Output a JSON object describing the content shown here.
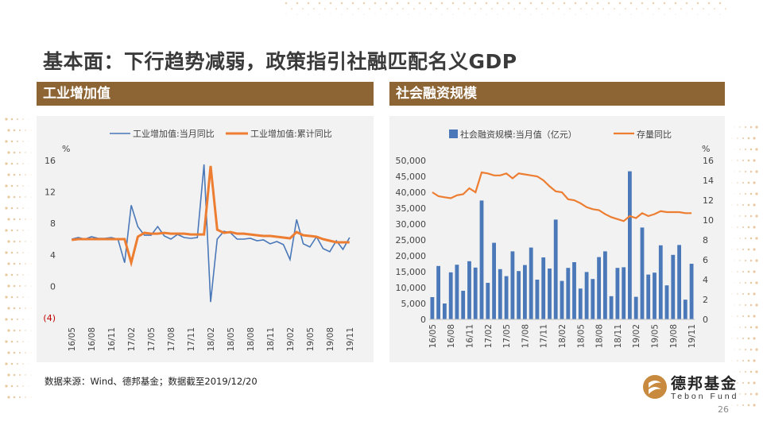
{
  "page": {
    "title": "基本面：下行趋势减弱，政策指引社融匹配名义GDP",
    "left_header": "工业增加值",
    "right_header": "社会融资规模",
    "source": "数据来源：Wind、德邦基金；数据截至2019/12/20",
    "page_number": "26",
    "logo": {
      "cn": "德邦基金",
      "en": "Tebon Fund",
      "icon": "tebon-logo-icon"
    },
    "colors": {
      "header_bg": "#8d6433",
      "blue": "#4a78b8",
      "orange": "#ed7d31",
      "panel_bg": "#f2f2f2"
    }
  },
  "chart_data": [
    {
      "type": "line",
      "y_unit": "%",
      "ylim": [
        -4,
        16
      ],
      "yticks": [
        16,
        12,
        8,
        4,
        0,
        -4
      ],
      "ytick_labels": [
        "16",
        "12",
        "8",
        "4",
        "0",
        "(4)"
      ],
      "x_tick_labels": [
        "16/05",
        "16/08",
        "16/11",
        "17/02",
        "17/05",
        "17/08",
        "17/11",
        "18/02",
        "18/05",
        "18/08",
        "18/11",
        "19/02",
        "19/05",
        "19/08",
        "19/11"
      ],
      "x": [
        "16/05",
        "16/06",
        "16/07",
        "16/08",
        "16/09",
        "16/10",
        "16/11",
        "16/12",
        "17/01",
        "17/02",
        "17/03",
        "17/04",
        "17/05",
        "17/06",
        "17/07",
        "17/08",
        "17/09",
        "17/10",
        "17/11",
        "17/12",
        "18/01",
        "18/02",
        "18/03",
        "18/04",
        "18/05",
        "18/06",
        "18/07",
        "18/08",
        "18/09",
        "18/10",
        "18/11",
        "18/12",
        "19/01",
        "19/02",
        "19/03",
        "19/04",
        "19/05",
        "19/06",
        "19/07",
        "19/08",
        "19/09",
        "19/10",
        "19/11"
      ],
      "series": [
        {
          "name": "工业增加值:当月同比",
          "color": "#4a78b8",
          "values": [
            6.0,
            6.2,
            6.0,
            6.3,
            6.1,
            6.1,
            6.2,
            6.0,
            3.0,
            10.3,
            7.6,
            6.5,
            6.5,
            7.6,
            6.4,
            6.0,
            6.6,
            6.2,
            6.1,
            6.2,
            15.5,
            -2.0,
            6.0,
            7.0,
            6.8,
            6.0,
            6.0,
            6.1,
            5.8,
            5.9,
            5.4,
            5.7,
            5.3,
            3.4,
            8.5,
            5.4,
            5.0,
            6.3,
            4.8,
            4.4,
            5.8,
            4.7,
            6.2
          ]
        },
        {
          "name": "工业增加值:累计同比",
          "color": "#ed7d31",
          "values": [
            5.9,
            6.0,
            6.0,
            6.0,
            6.0,
            6.0,
            6.0,
            6.0,
            6.0,
            3.0,
            6.3,
            6.8,
            6.7,
            6.7,
            6.8,
            6.7,
            6.7,
            6.7,
            6.6,
            6.6,
            6.6,
            15.3,
            7.2,
            6.8,
            6.9,
            6.7,
            6.7,
            6.6,
            6.5,
            6.4,
            6.4,
            6.3,
            6.2,
            6.1,
            6.9,
            6.5,
            6.4,
            6.3,
            6.0,
            5.8,
            5.6,
            5.6,
            5.6
          ]
        }
      ]
    },
    {
      "type": "bar",
      "ylim": [
        0,
        50000
      ],
      "yticks": [
        0,
        5000,
        10000,
        15000,
        20000,
        25000,
        30000,
        35000,
        40000,
        45000,
        50000
      ],
      "ytick_labels": [
        "0",
        "5,000",
        "10,000",
        "15,000",
        "20,000",
        "25,000",
        "30,000",
        "35,000",
        "40,000",
        "45,000",
        "50,000"
      ],
      "y2_unit": "%",
      "y2lim": [
        0,
        16
      ],
      "y2ticks": [
        0,
        2,
        4,
        6,
        8,
        10,
        12,
        14,
        16
      ],
      "y2tick_labels": [
        "0",
        "2",
        "4",
        "6",
        "8",
        "10",
        "12",
        "14",
        "16"
      ],
      "x_tick_labels": [
        "16/05",
        "16/08",
        "16/11",
        "17/02",
        "17/05",
        "17/08",
        "17/11",
        "18/02",
        "18/05",
        "18/08",
        "18/11",
        "19/02",
        "19/05",
        "19/08",
        "19/11"
      ],
      "x": [
        "16/05",
        "16/06",
        "16/07",
        "16/08",
        "16/09",
        "16/10",
        "16/11",
        "16/12",
        "17/01",
        "17/02",
        "17/03",
        "17/04",
        "17/05",
        "17/06",
        "17/07",
        "17/08",
        "17/09",
        "17/10",
        "17/11",
        "17/12",
        "18/01",
        "18/02",
        "18/03",
        "18/04",
        "18/05",
        "18/06",
        "18/07",
        "18/08",
        "18/09",
        "18/10",
        "18/11",
        "18/12",
        "19/01",
        "19/02",
        "19/03",
        "19/04",
        "19/05",
        "19/06",
        "19/07",
        "19/08",
        "19/09",
        "19/10",
        "19/11"
      ],
      "series": [
        {
          "name": "社会融资规模:当月值（亿元）",
          "kind": "bar",
          "axis": "left",
          "color": "#4a78b8",
          "values": [
            7000,
            16800,
            5000,
            14800,
            17200,
            9000,
            18300,
            16300,
            37400,
            11500,
            24100,
            15800,
            13600,
            21400,
            15200,
            17100,
            22600,
            12500,
            19500,
            16000,
            31400,
            12100,
            16200,
            18000,
            9700,
            14900,
            12700,
            19600,
            21400,
            7300,
            16200,
            16400,
            46600,
            7100,
            28900,
            14100,
            14700,
            23300,
            10700,
            20300,
            23400,
            6200,
            17500
          ]
        },
        {
          "name": "存量同比",
          "kind": "line",
          "axis": "right",
          "color": "#ed7d31",
          "values": [
            12.8,
            12.4,
            12.3,
            12.2,
            12.5,
            12.6,
            13.2,
            12.8,
            14.8,
            14.7,
            14.5,
            14.5,
            14.7,
            14.2,
            14.7,
            14.6,
            14.5,
            14.4,
            14.0,
            13.4,
            12.9,
            12.8,
            12.1,
            12.0,
            11.7,
            11.3,
            11.1,
            11.0,
            10.6,
            10.3,
            10.1,
            9.9,
            10.4,
            10.2,
            10.7,
            10.4,
            10.6,
            10.9,
            10.8,
            10.8,
            10.8,
            10.7,
            10.7
          ]
        }
      ]
    }
  ]
}
